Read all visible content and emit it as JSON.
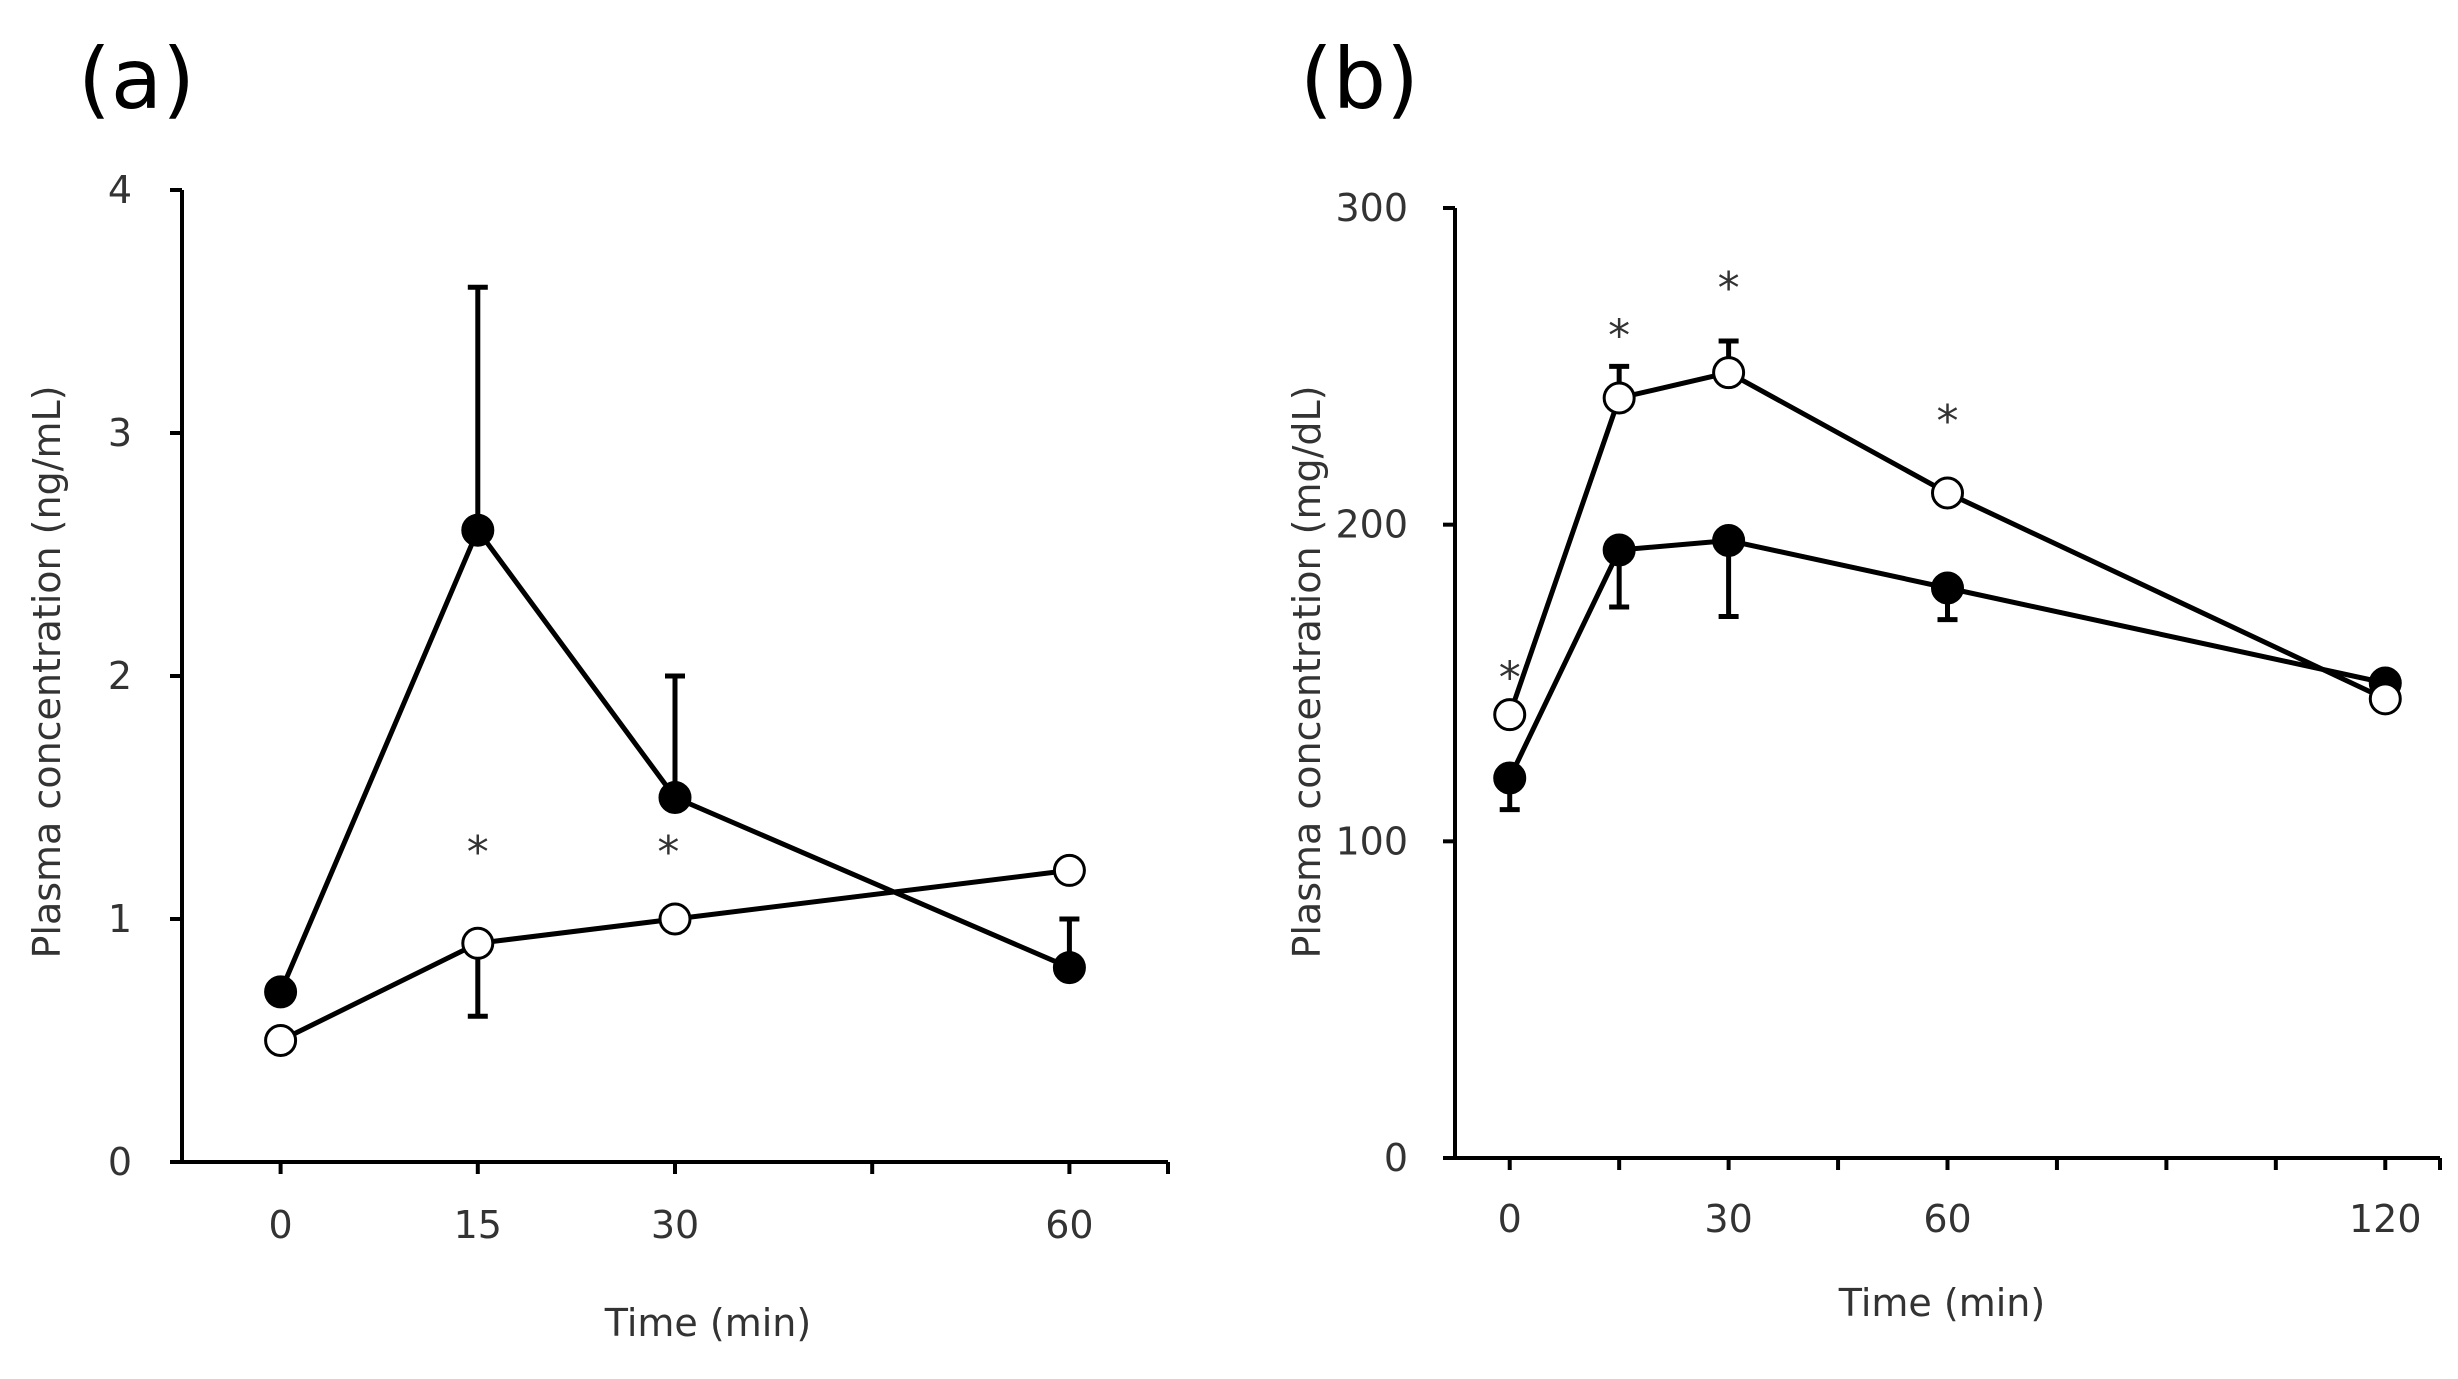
{
  "chart_data": [
    {
      "type": "line",
      "panel_label": "(a)",
      "xlabel": "Time (min)",
      "ylabel": "Plasma concentration (ng/mL)",
      "x_ticks": [
        0,
        15,
        30,
        60
      ],
      "xlim": [
        -7.5,
        67.5
      ],
      "y_ticks": [
        0,
        1,
        2,
        3,
        4
      ],
      "ylim": [
        0,
        4
      ],
      "grid": false,
      "series": [
        {
          "style": "filled",
          "x": [
            0,
            15,
            30,
            60
          ],
          "y": [
            0.7,
            2.6,
            1.5,
            0.8
          ],
          "err": [
            null,
            1.0,
            0.5,
            0.2
          ],
          "err_dir": [
            null,
            "up",
            "up",
            "up"
          ]
        },
        {
          "style": "open",
          "x": [
            0,
            15,
            30,
            60
          ],
          "y": [
            0.5,
            0.9,
            1.0,
            1.2
          ],
          "err": [
            null,
            0.3,
            null,
            null
          ],
          "err_dir": [
            null,
            "down",
            null,
            null
          ]
        }
      ],
      "annotations": [
        {
          "text": "*",
          "x": 15,
          "y": 1.28
        },
        {
          "text": "*",
          "x": 29.5,
          "y": 1.28
        }
      ]
    },
    {
      "type": "line",
      "panel_label": "(b)",
      "xlabel": "Time (min)",
      "ylabel": "Plasma concentration (mg/dL)",
      "x_ticks": [
        0,
        30,
        60,
        120
      ],
      "x_minor_ticks": [
        15,
        45,
        75,
        90,
        105
      ],
      "xlim": [
        -7.5,
        127.5
      ],
      "y_ticks": [
        0,
        100,
        200,
        300
      ],
      "ylim": [
        0,
        300
      ],
      "grid": false,
      "series": [
        {
          "style": "filled",
          "x": [
            0,
            15,
            30,
            60,
            120
          ],
          "y": [
            120,
            192,
            195,
            180,
            150
          ],
          "err": [
            10,
            18,
            24,
            10,
            null
          ],
          "err_dir": [
            "down",
            "down",
            "down",
            "down",
            null
          ]
        },
        {
          "style": "open",
          "x": [
            0,
            15,
            30,
            60,
            120
          ],
          "y": [
            140,
            240,
            248,
            210,
            145
          ],
          "err": [
            null,
            10,
            10,
            null,
            null
          ],
          "err_dir": [
            null,
            "up",
            "up",
            null,
            null
          ]
        }
      ],
      "annotations": [
        {
          "text": "*",
          "x": 0,
          "y": 152
        },
        {
          "text": "*",
          "x": 15,
          "y": 260
        },
        {
          "text": "*",
          "x": 30,
          "y": 275
        },
        {
          "text": "*",
          "x": 60,
          "y": 233
        }
      ]
    }
  ],
  "colors": {
    "line": "#000000",
    "text": "#333333",
    "open_fill": "#ffffff"
  }
}
